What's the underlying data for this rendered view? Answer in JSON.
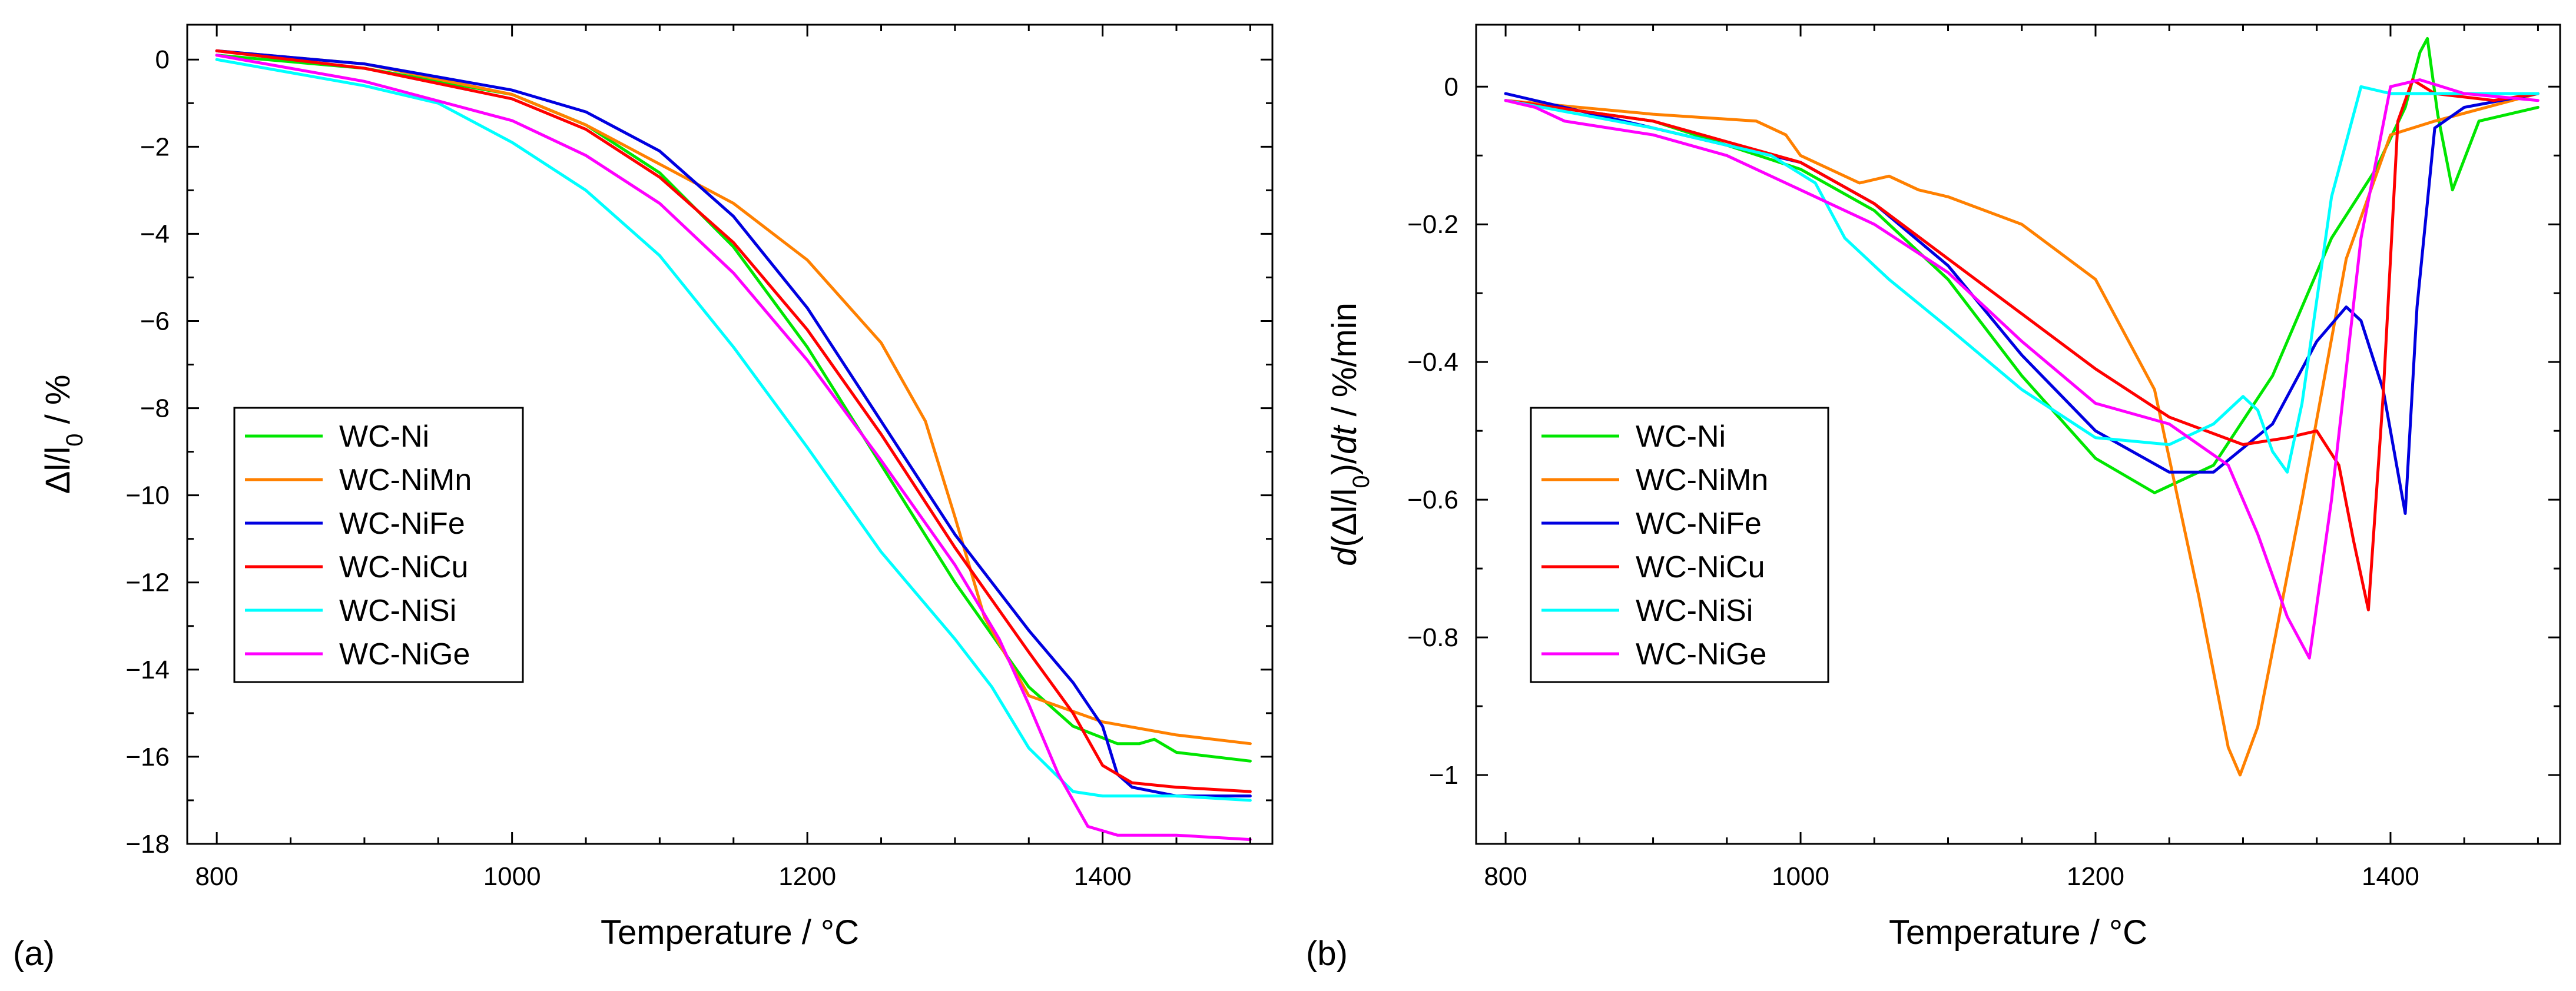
{
  "colors": {
    "WC-Ni": "#00e600",
    "WC-NiMn": "#ff8000",
    "WC-NiFe": "#0000e0",
    "WC-NiCu": "#ff0000",
    "WC-NiSi": "#00ffff",
    "WC-NiGe": "#ff00ff"
  },
  "chart_data": [
    {
      "panel": "(a)",
      "type": "line",
      "xlabel": "Temperature / °C",
      "ylabel": "Δl/l0 / %",
      "ylabel_parts": {
        "main": "Δl/l",
        "sub": "0",
        "rest": " / %"
      },
      "xlim": [
        780,
        1515
      ],
      "ylim": [
        -18,
        0.8
      ],
      "xticks": [
        800,
        1000,
        1200,
        1400
      ],
      "xtick_labels": [
        "800",
        "1000",
        "1200",
        "1400"
      ],
      "yticks": [
        0,
        -2,
        -4,
        -6,
        -8,
        -10,
        -12,
        -14,
        -16,
        -18
      ],
      "ytick_labels": [
        "0",
        "−2",
        "−4",
        "−6",
        "−8",
        "−10",
        "−12",
        "−14",
        "−16",
        "−18"
      ],
      "legend": [
        "WC-Ni",
        "WC-NiMn",
        "WC-NiFe",
        "WC-NiCu",
        "WC-NiSi",
        "WC-NiGe"
      ],
      "legend_position": "center-left",
      "series": [
        {
          "name": "WC-Ni",
          "x": [
            800,
            900,
            1000,
            1050,
            1100,
            1150,
            1200,
            1250,
            1300,
            1350,
            1380,
            1410,
            1425,
            1435,
            1450,
            1500
          ],
          "y": [
            0.1,
            -0.2,
            -0.8,
            -1.5,
            -2.6,
            -4.3,
            -6.6,
            -9.3,
            -12.0,
            -14.4,
            -15.3,
            -15.7,
            -15.7,
            -15.6,
            -15.9,
            -16.1
          ]
        },
        {
          "name": "WC-NiMn",
          "x": [
            800,
            900,
            1000,
            1050,
            1100,
            1150,
            1200,
            1250,
            1280,
            1300,
            1320,
            1350,
            1400,
            1450,
            1500
          ],
          "y": [
            0.2,
            -0.1,
            -0.8,
            -1.5,
            -2.4,
            -3.3,
            -4.6,
            -6.5,
            -8.3,
            -10.5,
            -12.8,
            -14.6,
            -15.2,
            -15.5,
            -15.7
          ]
        },
        {
          "name": "WC-NiFe",
          "x": [
            800,
            900,
            1000,
            1050,
            1100,
            1150,
            1200,
            1250,
            1300,
            1350,
            1380,
            1400,
            1410,
            1420,
            1450,
            1500
          ],
          "y": [
            0.2,
            -0.1,
            -0.7,
            -1.2,
            -2.1,
            -3.6,
            -5.7,
            -8.3,
            -10.9,
            -13.1,
            -14.3,
            -15.3,
            -16.4,
            -16.7,
            -16.9,
            -16.9
          ]
        },
        {
          "name": "WC-NiCu",
          "x": [
            800,
            900,
            1000,
            1050,
            1100,
            1150,
            1200,
            1250,
            1300,
            1350,
            1380,
            1400,
            1420,
            1450,
            1500
          ],
          "y": [
            0.2,
            -0.2,
            -0.9,
            -1.6,
            -2.7,
            -4.2,
            -6.2,
            -8.6,
            -11.2,
            -13.6,
            -15.0,
            -16.2,
            -16.6,
            -16.7,
            -16.8
          ]
        },
        {
          "name": "WC-NiSi",
          "x": [
            800,
            900,
            950,
            1000,
            1050,
            1100,
            1150,
            1200,
            1250,
            1300,
            1325,
            1350,
            1380,
            1400,
            1450,
            1500
          ],
          "y": [
            0.0,
            -0.6,
            -1.0,
            -1.9,
            -3.0,
            -4.5,
            -6.6,
            -8.9,
            -11.3,
            -13.3,
            -14.4,
            -15.8,
            -16.8,
            -16.9,
            -16.9,
            -17.0
          ]
        },
        {
          "name": "WC-NiGe",
          "x": [
            800,
            900,
            1000,
            1050,
            1100,
            1150,
            1200,
            1250,
            1300,
            1330,
            1350,
            1370,
            1390,
            1410,
            1450,
            1500
          ],
          "y": [
            0.1,
            -0.5,
            -1.4,
            -2.2,
            -3.3,
            -4.9,
            -6.9,
            -9.2,
            -11.6,
            -13.3,
            -14.8,
            -16.4,
            -17.6,
            -17.8,
            -17.8,
            -17.9
          ]
        }
      ]
    },
    {
      "panel": "(b)",
      "type": "line",
      "xlabel": "Temperature / °C",
      "ylabel": "d(Δl/l0)/dt / %/min",
      "ylabel_parts": {
        "main": "d(Δl/l",
        "sub": "0",
        "rest": ")/",
        "italic_tail": "dt",
        "end": " / %/min"
      },
      "xlim": [
        780,
        1515
      ],
      "ylim": [
        -1.1,
        0.09
      ],
      "xticks": [
        800,
        1000,
        1200,
        1400
      ],
      "xtick_labels": [
        "800",
        "1000",
        "1200",
        "1400"
      ],
      "yticks": [
        0,
        -0.2,
        -0.4,
        -0.6,
        -0.8,
        -1
      ],
      "ytick_labels": [
        "0",
        "−0.2",
        "−0.4",
        "−0.6",
        "−0.8",
        "−1"
      ],
      "legend": [
        "WC-Ni",
        "WC-NiMn",
        "WC-NiFe",
        "WC-NiCu",
        "WC-NiSi",
        "WC-NiGe"
      ],
      "legend_position": "center-left",
      "series": [
        {
          "name": "WC-Ni",
          "x": [
            800,
            900,
            1000,
            1050,
            1100,
            1150,
            1200,
            1240,
            1280,
            1320,
            1360,
            1390,
            1410,
            1420,
            1425,
            1432,
            1442,
            1460,
            1500
          ],
          "y": [
            -0.02,
            -0.05,
            -0.12,
            -0.18,
            -0.28,
            -0.42,
            -0.54,
            -0.59,
            -0.55,
            -0.42,
            -0.22,
            -0.12,
            -0.03,
            0.05,
            0.07,
            -0.04,
            -0.15,
            -0.05,
            -0.03
          ]
        },
        {
          "name": "WC-NiMn",
          "x": [
            800,
            900,
            970,
            990,
            1000,
            1040,
            1060,
            1080,
            1100,
            1150,
            1200,
            1240,
            1270,
            1290,
            1298,
            1310,
            1340,
            1370,
            1400,
            1430,
            1500
          ],
          "y": [
            -0.02,
            -0.04,
            -0.05,
            -0.07,
            -0.1,
            -0.14,
            -0.13,
            -0.15,
            -0.16,
            -0.2,
            -0.28,
            -0.44,
            -0.74,
            -0.96,
            -1.0,
            -0.93,
            -0.6,
            -0.25,
            -0.07,
            -0.05,
            -0.01
          ]
        },
        {
          "name": "WC-NiFe",
          "x": [
            800,
            900,
            1000,
            1050,
            1100,
            1150,
            1200,
            1250,
            1280,
            1320,
            1350,
            1370,
            1380,
            1395,
            1410,
            1418,
            1430,
            1450,
            1500
          ],
          "y": [
            -0.01,
            -0.06,
            -0.11,
            -0.17,
            -0.26,
            -0.39,
            -0.5,
            -0.56,
            -0.56,
            -0.49,
            -0.37,
            -0.32,
            -0.34,
            -0.44,
            -0.62,
            -0.32,
            -0.06,
            -0.03,
            -0.01
          ]
        },
        {
          "name": "WC-NiCu",
          "x": [
            800,
            900,
            1000,
            1050,
            1100,
            1150,
            1200,
            1250,
            1300,
            1330,
            1350,
            1365,
            1375,
            1385,
            1395,
            1405,
            1415,
            1430,
            1470,
            1500
          ],
          "y": [
            -0.02,
            -0.05,
            -0.11,
            -0.17,
            -0.25,
            -0.33,
            -0.41,
            -0.48,
            -0.52,
            -0.51,
            -0.5,
            -0.55,
            -0.66,
            -0.76,
            -0.45,
            -0.05,
            0.01,
            -0.01,
            -0.02,
            -0.01
          ]
        },
        {
          "name": "WC-NiSi",
          "x": [
            800,
            900,
            980,
            1010,
            1030,
            1060,
            1100,
            1150,
            1200,
            1250,
            1280,
            1300,
            1310,
            1320,
            1330,
            1340,
            1360,
            1380,
            1400,
            1450,
            1500
          ],
          "y": [
            -0.02,
            -0.06,
            -0.1,
            -0.14,
            -0.22,
            -0.28,
            -0.35,
            -0.44,
            -0.51,
            -0.52,
            -0.49,
            -0.45,
            -0.47,
            -0.53,
            -0.56,
            -0.46,
            -0.16,
            0.0,
            -0.01,
            -0.01,
            -0.01
          ]
        },
        {
          "name": "WC-NiGe",
          "x": [
            800,
            820,
            840,
            900,
            950,
            1000,
            1050,
            1100,
            1150,
            1200,
            1250,
            1290,
            1310,
            1330,
            1345,
            1360,
            1380,
            1400,
            1420,
            1450,
            1500
          ],
          "y": [
            -0.02,
            -0.03,
            -0.05,
            -0.07,
            -0.1,
            -0.15,
            -0.2,
            -0.27,
            -0.37,
            -0.46,
            -0.49,
            -0.55,
            -0.65,
            -0.77,
            -0.83,
            -0.6,
            -0.22,
            0.0,
            0.01,
            -0.01,
            -0.02
          ]
        }
      ]
    }
  ]
}
